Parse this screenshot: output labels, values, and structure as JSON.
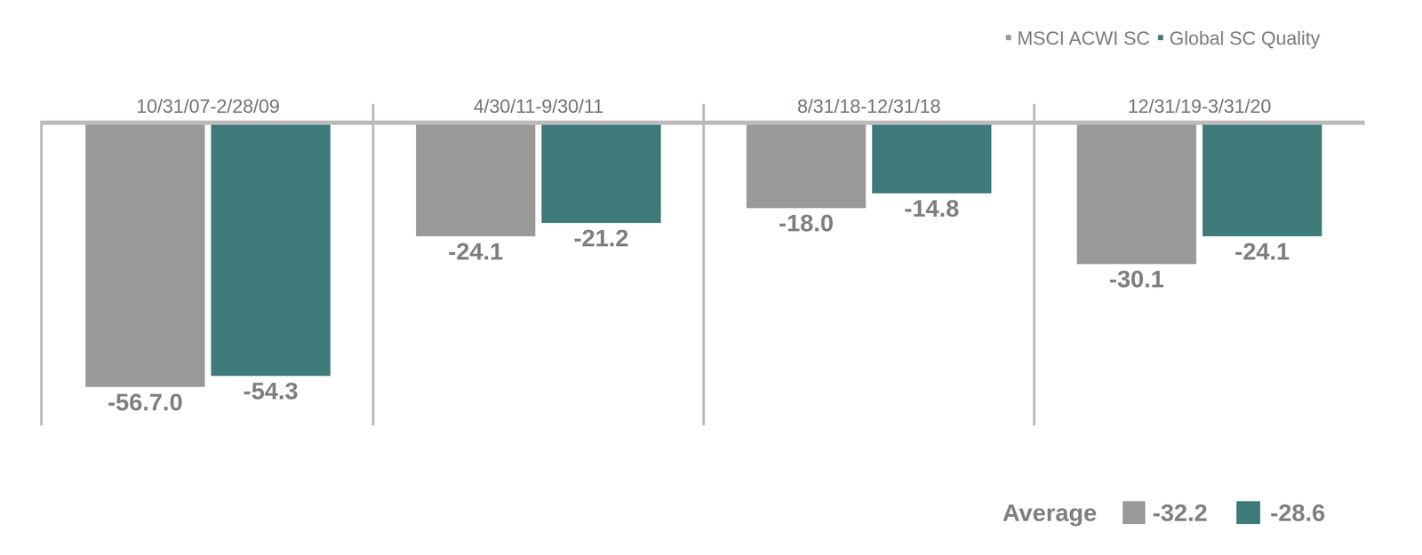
{
  "chart_data": {
    "type": "bar",
    "categories": [
      "10/31/07-2/28/09",
      "4/30/11-9/30/11",
      "8/31/18-12/31/18",
      "12/31/19-3/31/20"
    ],
    "series": [
      {
        "name": "MSCI ACWI SC",
        "color": "#999999",
        "values": [
          -56.7,
          -24.1,
          -18.0,
          -30.1
        ],
        "value_labels": [
          "-56.7.0",
          "-24.1",
          "-18.0",
          "-30.1"
        ]
      },
      {
        "name": "Global SC Quality",
        "color": "#3f7a7a",
        "values": [
          -54.3,
          -21.2,
          -14.8,
          -24.1
        ],
        "value_labels": [
          "-54.3",
          "-21.2",
          "-14.8",
          "-24.1"
        ]
      }
    ],
    "average": {
      "label": "Average",
      "values": [
        -32.2,
        -28.6
      ],
      "value_labels": [
        "-32.2",
        "-28.6"
      ]
    },
    "ylim": [
      -65,
      0
    ],
    "yticks": [
      0
    ],
    "grid": false,
    "legend": "top right",
    "data_labels": true,
    "tick_labels": "x"
  }
}
